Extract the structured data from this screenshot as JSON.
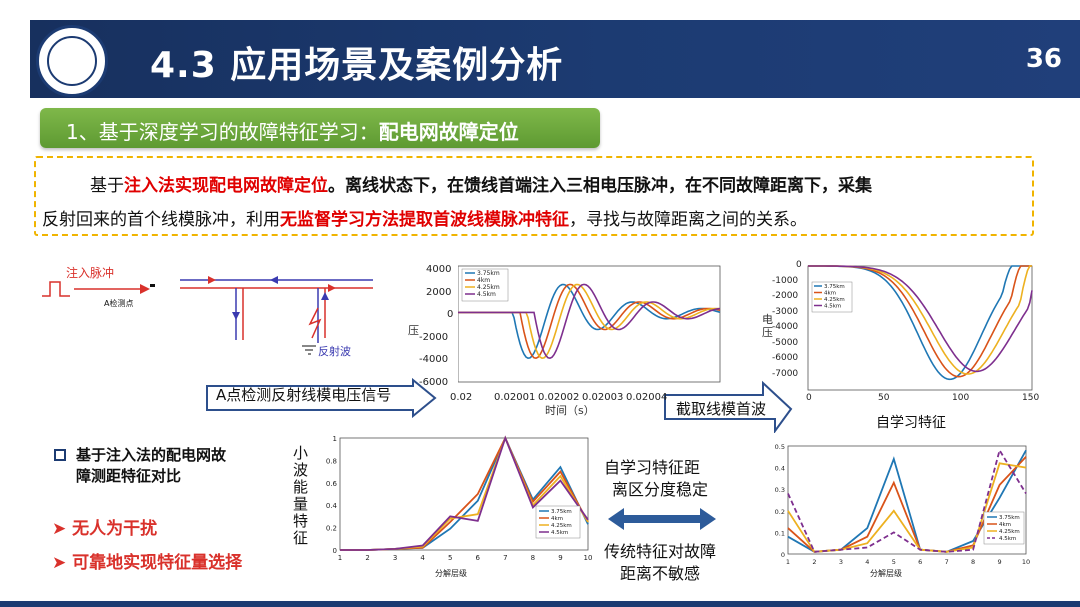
{
  "header": {
    "title": "4.3 应用场景及案例分析",
    "page_number": "36"
  },
  "subtitle": {
    "prefix": "1、基于深度学习的故障特征学习：",
    "bold": "配电网故障定位"
  },
  "description": {
    "line1_a": "基于",
    "line1_b": "注入法实现配电网故障定位",
    "line1_c": "。离线状态下，在馈线首端注入三相电压脉冲，在不同故障距离下，采集",
    "line2_a": "反射回来的首个线模脉冲，利用",
    "line2_b": "无监督学习方法提取首波线模脉冲特征",
    "line2_c": "，寻找与故障距离之间的关系。"
  },
  "schematic": {
    "inject_label": "注入脉冲",
    "point_label": "A检测点",
    "reflect_label": "反射波"
  },
  "arrows": {
    "detect": "A点检测反射线模电压信号",
    "extract": "截取线模首波"
  },
  "labels": {
    "voltage_axis": "压",
    "voltage_axis_top": "电",
    "time_axis": "时间（s）",
    "self_feature": "自学习特征",
    "decomp_level": "分解层级",
    "wavelet_energy": "小波能量特征"
  },
  "bullets": {
    "main": [
      "基于注入法的配电网故",
      "障测距特征对比"
    ],
    "items": [
      "无人为干扰",
      "可靠地实现特征量选择"
    ]
  },
  "comparison": {
    "top": [
      "自学习特征距",
      "离区分度稳定"
    ],
    "bottom": [
      "传统特征对故障",
      "距离不敏感"
    ]
  },
  "colors": {
    "header": "#1c3b72",
    "accent_green": "#6aa83c",
    "highlight_red": "#e00000",
    "series": [
      "#1f77b4",
      "#d95319",
      "#edb120",
      "#7e2f8e"
    ]
  },
  "legend": [
    "3.75km",
    "4km",
    "4.25km",
    "4.5km"
  ],
  "chart_data": [
    {
      "type": "line",
      "xlabel": "时间（s）",
      "ylabel": "电压",
      "ylim": [
        -6000,
        4000
      ],
      "y_ticks": [
        "4000",
        "2000",
        "0",
        "-2000",
        "-4000",
        "-6000"
      ],
      "x_ticks": [
        "0.02",
        "0.02001",
        "0.02002",
        "0.02003",
        "0.02004"
      ],
      "series": [
        {
          "name": "3.75km",
          "color": "#1f77b4"
        },
        {
          "name": "4km",
          "color": "#d95319"
        },
        {
          "name": "4.25km",
          "color": "#edb120"
        },
        {
          "name": "4.5km",
          "color": "#7e2f8e"
        }
      ]
    },
    {
      "type": "line",
      "xlabel": "",
      "ylim": [
        -7000,
        0
      ],
      "y_ticks": [
        "0",
        "-1000",
        "-2000",
        "-3000",
        "-4000",
        "-5000",
        "-6000",
        "-7000"
      ],
      "x_ticks": [
        "0",
        "50",
        "100",
        "150"
      ],
      "series": [
        {
          "name": "3.75km",
          "color": "#1f77b4"
        },
        {
          "name": "4km",
          "color": "#d95319"
        },
        {
          "name": "4.25km",
          "color": "#edb120"
        },
        {
          "name": "4.5km",
          "color": "#7e2f8e"
        }
      ]
    },
    {
      "type": "line",
      "xlabel": "分解层级",
      "ylabel": "小波能量特征",
      "ylim": [
        0,
        1
      ],
      "x": [
        1,
        2,
        3,
        4,
        5,
        6,
        7,
        8,
        9,
        10
      ],
      "y_ticks": [
        "1",
        "0.8",
        "0.6",
        "0.4",
        "0.2",
        "0"
      ],
      "series": [
        {
          "name": "3.75km",
          "values": [
            0,
            0,
            0.01,
            0.02,
            0.19,
            0.44,
            1.0,
            0.45,
            0.74,
            0.23
          ]
        },
        {
          "name": "4km",
          "values": [
            0,
            0,
            0.01,
            0.02,
            0.25,
            0.5,
            1.0,
            0.43,
            0.7,
            0.25
          ]
        },
        {
          "name": "4.25km",
          "values": [
            0,
            0,
            0.01,
            0.03,
            0.28,
            0.32,
            1.0,
            0.4,
            0.66,
            0.25
          ]
        },
        {
          "name": "4.5km",
          "values": [
            0,
            0,
            0.01,
            0.04,
            0.3,
            0.26,
            1.0,
            0.38,
            0.62,
            0.27
          ]
        }
      ]
    },
    {
      "type": "line",
      "xlabel": "分解层级",
      "ylim": [
        0,
        0.5
      ],
      "x": [
        1,
        2,
        3,
        4,
        5,
        6,
        7,
        8,
        9,
        10
      ],
      "y_ticks": [
        "0.5",
        "0.4",
        "0.3",
        "0.2",
        "0.1",
        "0"
      ],
      "series": [
        {
          "name": "3.75km",
          "values": [
            0.08,
            0.01,
            0.02,
            0.12,
            0.44,
            0.02,
            0.01,
            0.06,
            0.26,
            0.48
          ]
        },
        {
          "name": "4km",
          "values": [
            0.12,
            0.01,
            0.02,
            0.08,
            0.33,
            0.02,
            0.01,
            0.04,
            0.32,
            0.45
          ]
        },
        {
          "name": "4.25km",
          "values": [
            0.2,
            0.01,
            0.02,
            0.05,
            0.2,
            0.02,
            0.01,
            0.03,
            0.42,
            0.4
          ]
        },
        {
          "name": "4.5km",
          "values": [
            0.28,
            0.01,
            0.02,
            0.03,
            0.1,
            0.02,
            0.01,
            0.02,
            0.48,
            0.28
          ]
        }
      ]
    }
  ]
}
